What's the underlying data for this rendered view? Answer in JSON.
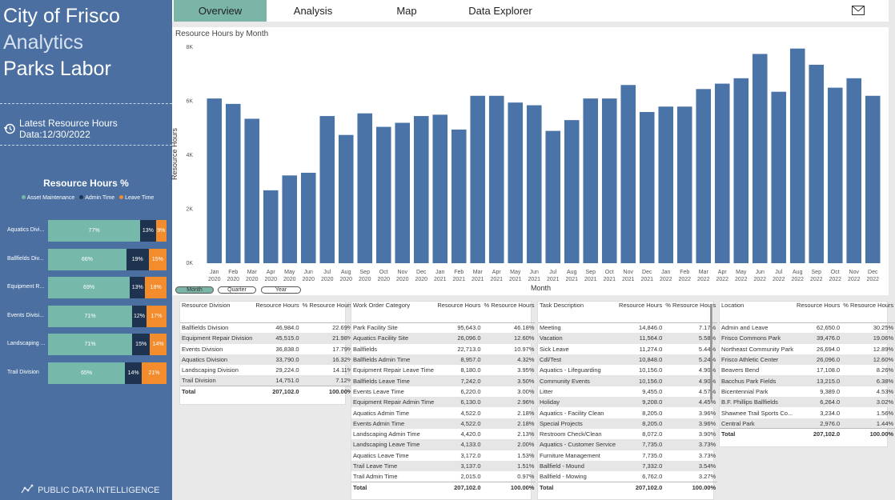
{
  "brand": {
    "line1": "City of Frisco",
    "line2": "Analytics",
    "line3": "Parks Labor",
    "latest": "Latest Resource Hours Data:12/30/2022",
    "footer": "PUBLIC DATA INTELLIGENCE"
  },
  "colors": {
    "sidebar": "#4a6fa0",
    "asset": "#76b9aa",
    "admin": "#1e3350",
    "leave": "#f28c2c",
    "bar": "#4a73a8",
    "active_tab": "#7bb5a8"
  },
  "rh": {
    "title": "Resource Hours %",
    "legend": [
      "Asset Maintenance",
      "Admin Time",
      "Leave Time"
    ],
    "rows": [
      {
        "label": "Aquatics Divi...",
        "asset": 77,
        "admin": 13,
        "leave": 9,
        "asset_t": "77%",
        "admin_t": "13%",
        "leave_t": "9%"
      },
      {
        "label": "Ballfields Div...",
        "asset": 66,
        "admin": 19,
        "leave": 15,
        "asset_t": "66%",
        "admin_t": "19%",
        "leave_t": "15%"
      },
      {
        "label": "Equipment R...",
        "asset": 69,
        "admin": 13,
        "leave": 18,
        "asset_t": "69%",
        "admin_t": "13%",
        "leave_t": "18%"
      },
      {
        "label": "Events Divisi...",
        "asset": 71,
        "admin": 12,
        "leave": 17,
        "asset_t": "71%",
        "admin_t": "12%",
        "leave_t": "17%"
      },
      {
        "label": "Landscaping ...",
        "asset": 71,
        "admin": 15,
        "leave": 14,
        "asset_t": "71%",
        "admin_t": "15%",
        "leave_t": "14%"
      },
      {
        "label": "Trail Division",
        "asset": 65,
        "admin": 14,
        "leave": 21,
        "asset_t": "65%",
        "admin_t": "14%",
        "leave_t": "21%"
      }
    ]
  },
  "nav": {
    "tabs": [
      "Overview",
      "Analysis",
      "Map",
      "Data Explorer"
    ],
    "active": "Overview"
  },
  "chart_data": {
    "type": "bar",
    "title": "Resource Hours by Month",
    "xlabel": "Month",
    "ylabel": "Resource Hours",
    "ylim": [
      0,
      8000
    ],
    "yticks": [
      "0K",
      "2K",
      "4K",
      "6K",
      "8K"
    ],
    "grid": false,
    "categories": [
      "Jan 2020",
      "Feb 2020",
      "Mar 2020",
      "Apr 2020",
      "May 2020",
      "Jun 2020",
      "Jul 2020",
      "Aug 2020",
      "Sep 2020",
      "Oct 2020",
      "Nov 2020",
      "Dec 2020",
      "Jan 2021",
      "Feb 2021",
      "Mar 2021",
      "Apr 2021",
      "May 2021",
      "Jun 2021",
      "Jul 2021",
      "Aug 2021",
      "Sep 2021",
      "Oct 2021",
      "Nov 2021",
      "Dec 2021",
      "Jan 2022",
      "Feb 2022",
      "Mar 2022",
      "Apr 2022",
      "May 2022",
      "Jun 2022",
      "Jul 2022",
      "Aug 2022",
      "Sep 2022",
      "Oct 2022",
      "Nov 2022",
      "Dec 2022"
    ],
    "values": [
      6100,
      5900,
      5350,
      2700,
      3250,
      3350,
      5450,
      4750,
      5550,
      5050,
      5200,
      5450,
      5500,
      4950,
      6200,
      6200,
      5950,
      5850,
      4900,
      5300,
      6100,
      6100,
      6600,
      5600,
      5800,
      5800,
      6450,
      6650,
      6850,
      7750,
      6350,
      7950,
      7350,
      6500,
      6850,
      6200
    ]
  },
  "granularity": {
    "options": [
      "Month",
      "Quarter",
      "Year"
    ],
    "active": "Month"
  },
  "tables": {
    "division": {
      "headers": [
        "Resource Division",
        "Resource Hours",
        "% Resource Hours"
      ],
      "rows": [
        [
          "Ballfields Division",
          "46,984.0",
          "22.69%"
        ],
        [
          "Equipment Repair Division",
          "45,515.0",
          "21.98%"
        ],
        [
          "Events Division",
          "36,838.0",
          "17.79%"
        ],
        [
          "Aquatics Division",
          "33,790.0",
          "16.32%"
        ],
        [
          "Landscaping Division",
          "29,224.0",
          "14.11%"
        ],
        [
          "Trail Division",
          "14,751.0",
          "7.12%"
        ]
      ],
      "total": [
        "Total",
        "207,102.0",
        "100.00%"
      ]
    },
    "workorder": {
      "headers": [
        "Work Order Category",
        "Resource Hours",
        "% Resource Hours"
      ],
      "rows": [
        [
          "Park Facility Site",
          "95,643.0",
          "46.18%"
        ],
        [
          "Aquatics Facility Site",
          "26,096.0",
          "12.60%"
        ],
        [
          "Ballfields",
          "22,713.0",
          "10.97%"
        ],
        [
          "Ballfields Admin Time",
          "8,957.0",
          "4.32%"
        ],
        [
          "Equipment Repair Leave Time",
          "8,180.0",
          "3.95%"
        ],
        [
          "Ballfields Leave Time",
          "7,242.0",
          "3.50%"
        ],
        [
          "Events Leave Time",
          "6,220.0",
          "3.00%"
        ],
        [
          "Equipment Repair Admin Time",
          "6,130.0",
          "2.96%"
        ],
        [
          "Aquatics Admin Time",
          "4,522.0",
          "2.18%"
        ],
        [
          "Events Admin Time",
          "4,522.0",
          "2.18%"
        ],
        [
          "Landscaping Admin Time",
          "4,420.0",
          "2.13%"
        ],
        [
          "Landscaping Leave Time",
          "4,133.0",
          "2.00%"
        ],
        [
          "Aquatics Leave Time",
          "3,172.0",
          "1.53%"
        ],
        [
          "Trail Leave Time",
          "3,137.0",
          "1.51%"
        ],
        [
          "Trail Admin Time",
          "2,015.0",
          "0.97%"
        ]
      ],
      "total": [
        "Total",
        "207,102.0",
        "100.00%"
      ]
    },
    "task": {
      "headers": [
        "Task Description",
        "Resource Hours",
        "% Resource Hours"
      ],
      "rows": [
        [
          "Meeting",
          "14,846.0",
          "7.17%"
        ],
        [
          "Vacation",
          "11,564.0",
          "5.58%"
        ],
        [
          "Sick Leave",
          "11,274.0",
          "5.44%"
        ],
        [
          "Cdl/Test",
          "10,848.0",
          "5.24%"
        ],
        [
          "Aquatics - Lifeguarding",
          "10,156.0",
          "4.90%"
        ],
        [
          "Community Events",
          "10,156.0",
          "4.90%"
        ],
        [
          "Litter",
          "9,455.0",
          "4.57%"
        ],
        [
          "Holiday",
          "9,208.0",
          "4.45%"
        ],
        [
          "Aquatics - Facility Clean",
          "8,205.0",
          "3.96%"
        ],
        [
          "Special Projects",
          "8,205.0",
          "3.96%"
        ],
        [
          "Restroom Check/Clean",
          "8,072.0",
          "3.90%"
        ],
        [
          "Aquatics - Customer Service",
          "7,735.0",
          "3.73%"
        ],
        [
          "Furniture Management",
          "7,735.0",
          "3.73%"
        ],
        [
          "Ballfield - Mound",
          "7,332.0",
          "3.54%"
        ],
        [
          "Ballfield - Mowing",
          "6,762.0",
          "3.27%"
        ]
      ],
      "total": [
        "Total",
        "207,102.0",
        "100.00%"
      ]
    },
    "location": {
      "headers": [
        "Location",
        "Resource Hours",
        "% Resource Hours"
      ],
      "rows": [
        [
          "Admin and Leave",
          "62,650.0",
          "30.25%"
        ],
        [
          "Frisco Commons Park",
          "39,476.0",
          "19.06%"
        ],
        [
          "Northeast Community Park",
          "26,694.0",
          "12.89%"
        ],
        [
          "Frisco Athletic Center",
          "26,096.0",
          "12.60%"
        ],
        [
          "Beavers Bend",
          "17,108.0",
          "8.26%"
        ],
        [
          "Bacchus Park Fields",
          "13,215.0",
          "6.38%"
        ],
        [
          "Bicentennial Park",
          "9,389.0",
          "4.53%"
        ],
        [
          "B.F. Phillips Ballfields",
          "6,264.0",
          "3.02%"
        ],
        [
          "Shawnee Trail Sports Co...",
          "3,234.0",
          "1.56%"
        ],
        [
          "Central Park",
          "2,976.0",
          "1.44%"
        ]
      ],
      "total": [
        "Total",
        "207,102.0",
        "100.00%"
      ]
    }
  }
}
